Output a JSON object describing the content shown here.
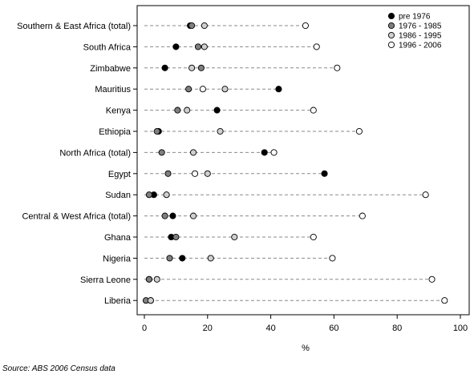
{
  "chart_data": {
    "type": "scatter",
    "title": "",
    "xlabel": "%",
    "ylabel": "",
    "xlim": [
      0,
      100
    ],
    "xticks": [
      0,
      20,
      40,
      60,
      80,
      100
    ],
    "grid": false,
    "legend_position": "top-right",
    "categories": [
      "Southern & East Africa (total)",
      "South Africa",
      "Zimbabwe",
      "Mauritius",
      "Kenya",
      "Ethiopia",
      "North Africa (total)",
      "Egypt",
      "Sudan",
      "Central & West Africa (total)",
      "Ghana",
      "Nigeria",
      "Sierra Leone",
      "Liberia"
    ],
    "series": [
      {
        "name": "pre 1976",
        "color": "#000000",
        "values": [
          14.5,
          10.0,
          6.5,
          42.5,
          23.0,
          4.5,
          38.0,
          57.0,
          3.0,
          9.0,
          8.5,
          12.0,
          1.5,
          2.0
        ]
      },
      {
        "name": "1976 - 1985",
        "color": "#7f7f7f",
        "values": [
          15.0,
          17.0,
          18.0,
          14.0,
          10.5,
          4.0,
          5.5,
          7.5,
          1.5,
          6.5,
          10.0,
          8.0,
          1.5,
          0.5
        ]
      },
      {
        "name": "1986 - 1995",
        "color": "#cfcfcf",
        "values": [
          19.0,
          19.0,
          15.0,
          25.5,
          13.5,
          24.0,
          15.5,
          20.0,
          7.0,
          15.5,
          28.5,
          21.0,
          4.0,
          2.0
        ]
      },
      {
        "name": "1996 - 2006",
        "color": "#ffffff",
        "values": [
          51.0,
          54.5,
          61.0,
          18.5,
          53.5,
          68.0,
          41.0,
          16.0,
          89.0,
          69.0,
          53.5,
          59.5,
          91.0,
          95.0
        ]
      }
    ]
  },
  "source_note": "Source: ABS 2006 Census data"
}
